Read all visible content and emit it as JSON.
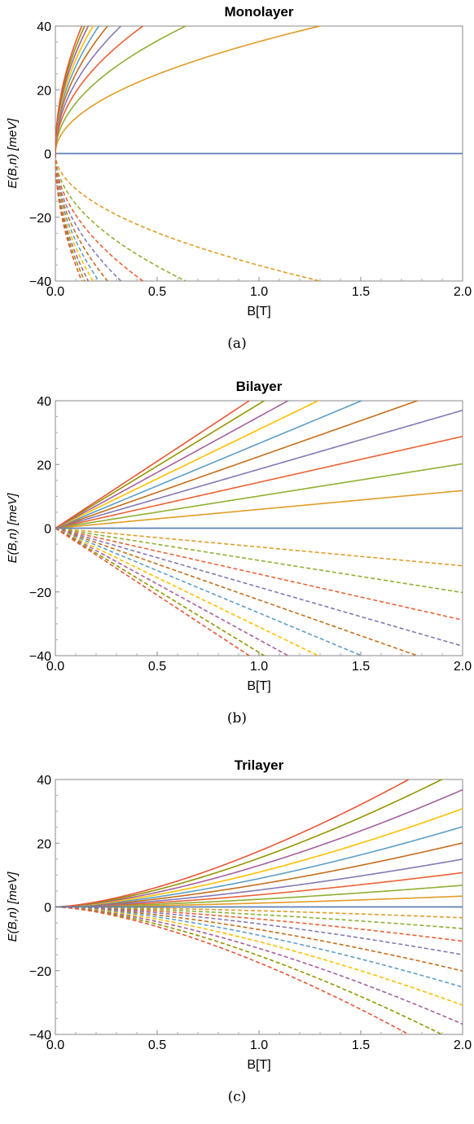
{
  "captions": [
    "(a)",
    "(b)",
    "(c)"
  ],
  "chart_data": [
    {
      "type": "line",
      "title": "Monolayer",
      "xlabel": "B[T]",
      "ylabel": "E(B,n) [meV]",
      "xlim": [
        0,
        2.0
      ],
      "ylim": [
        -40,
        40
      ],
      "xticks": [
        "0.0",
        "0.5",
        "1.0",
        "1.5",
        "2.0"
      ],
      "yticks": [
        "40",
        "20",
        "0",
        "−20",
        "−40"
      ],
      "model": "sqrt(B)",
      "levels_n": [
        1,
        2,
        3,
        4,
        5,
        6,
        7,
        8,
        9,
        10
      ],
      "coefficients_meV": [
        35.1,
        50.0,
        61.0,
        70.5,
        79.0,
        86.5,
        93.0,
        99.5,
        105.5,
        111.0
      ],
      "positive_style": "solid",
      "negative_style": "dashed",
      "zero_level": 0
    },
    {
      "type": "line",
      "title": "Bilayer",
      "xlabel": "B[T]",
      "ylabel": "E(B,n) [meV]",
      "xlim": [
        0,
        2.0
      ],
      "ylim": [
        -40,
        40
      ],
      "xticks": [
        "0.0",
        "0.5",
        "1.0",
        "1.5",
        "2.0"
      ],
      "yticks": [
        "40",
        "20",
        "0",
        "−20",
        "−40"
      ],
      "model": "linear(B)",
      "levels_n": [
        1,
        2,
        3,
        4,
        5,
        6,
        7,
        8,
        9,
        10
      ],
      "coefficients_meV": [
        5.9,
        10.1,
        14.4,
        18.5,
        22.5,
        26.6,
        31.0,
        35.0,
        39.0,
        42.0
      ],
      "positive_style": "solid",
      "negative_style": "dashed",
      "zero_level": 0
    },
    {
      "type": "line",
      "title": "Trilayer",
      "xlabel": "B[T]",
      "ylabel": "E(B,n) [meV]",
      "xlim": [
        0,
        2.0
      ],
      "ylim": [
        -40,
        40
      ],
      "xticks": [
        "0.0",
        "0.5",
        "1.0",
        "1.5",
        "2.0"
      ],
      "yticks": [
        "40",
        "20",
        "0",
        "−20",
        "−40"
      ],
      "model": "B^1.5",
      "levels_n": [
        1,
        2,
        3,
        4,
        5,
        6,
        7,
        8,
        9,
        10
      ],
      "coefficients_meV": [
        1.2,
        2.4,
        3.8,
        5.3,
        7.1,
        8.9,
        10.9,
        13.0,
        15.3,
        17.5
      ],
      "positive_style": "solid",
      "negative_style": "dashed",
      "zero_level": 0
    }
  ],
  "colors": {
    "zero_line": "#5e81b5",
    "palette": [
      "#e19c24",
      "#8fb032",
      "#eb6235",
      "#8778b3",
      "#c56e1a",
      "#5d9ec7",
      "#ffbf00",
      "#a5609d",
      "#929600",
      "#e95536"
    ]
  }
}
